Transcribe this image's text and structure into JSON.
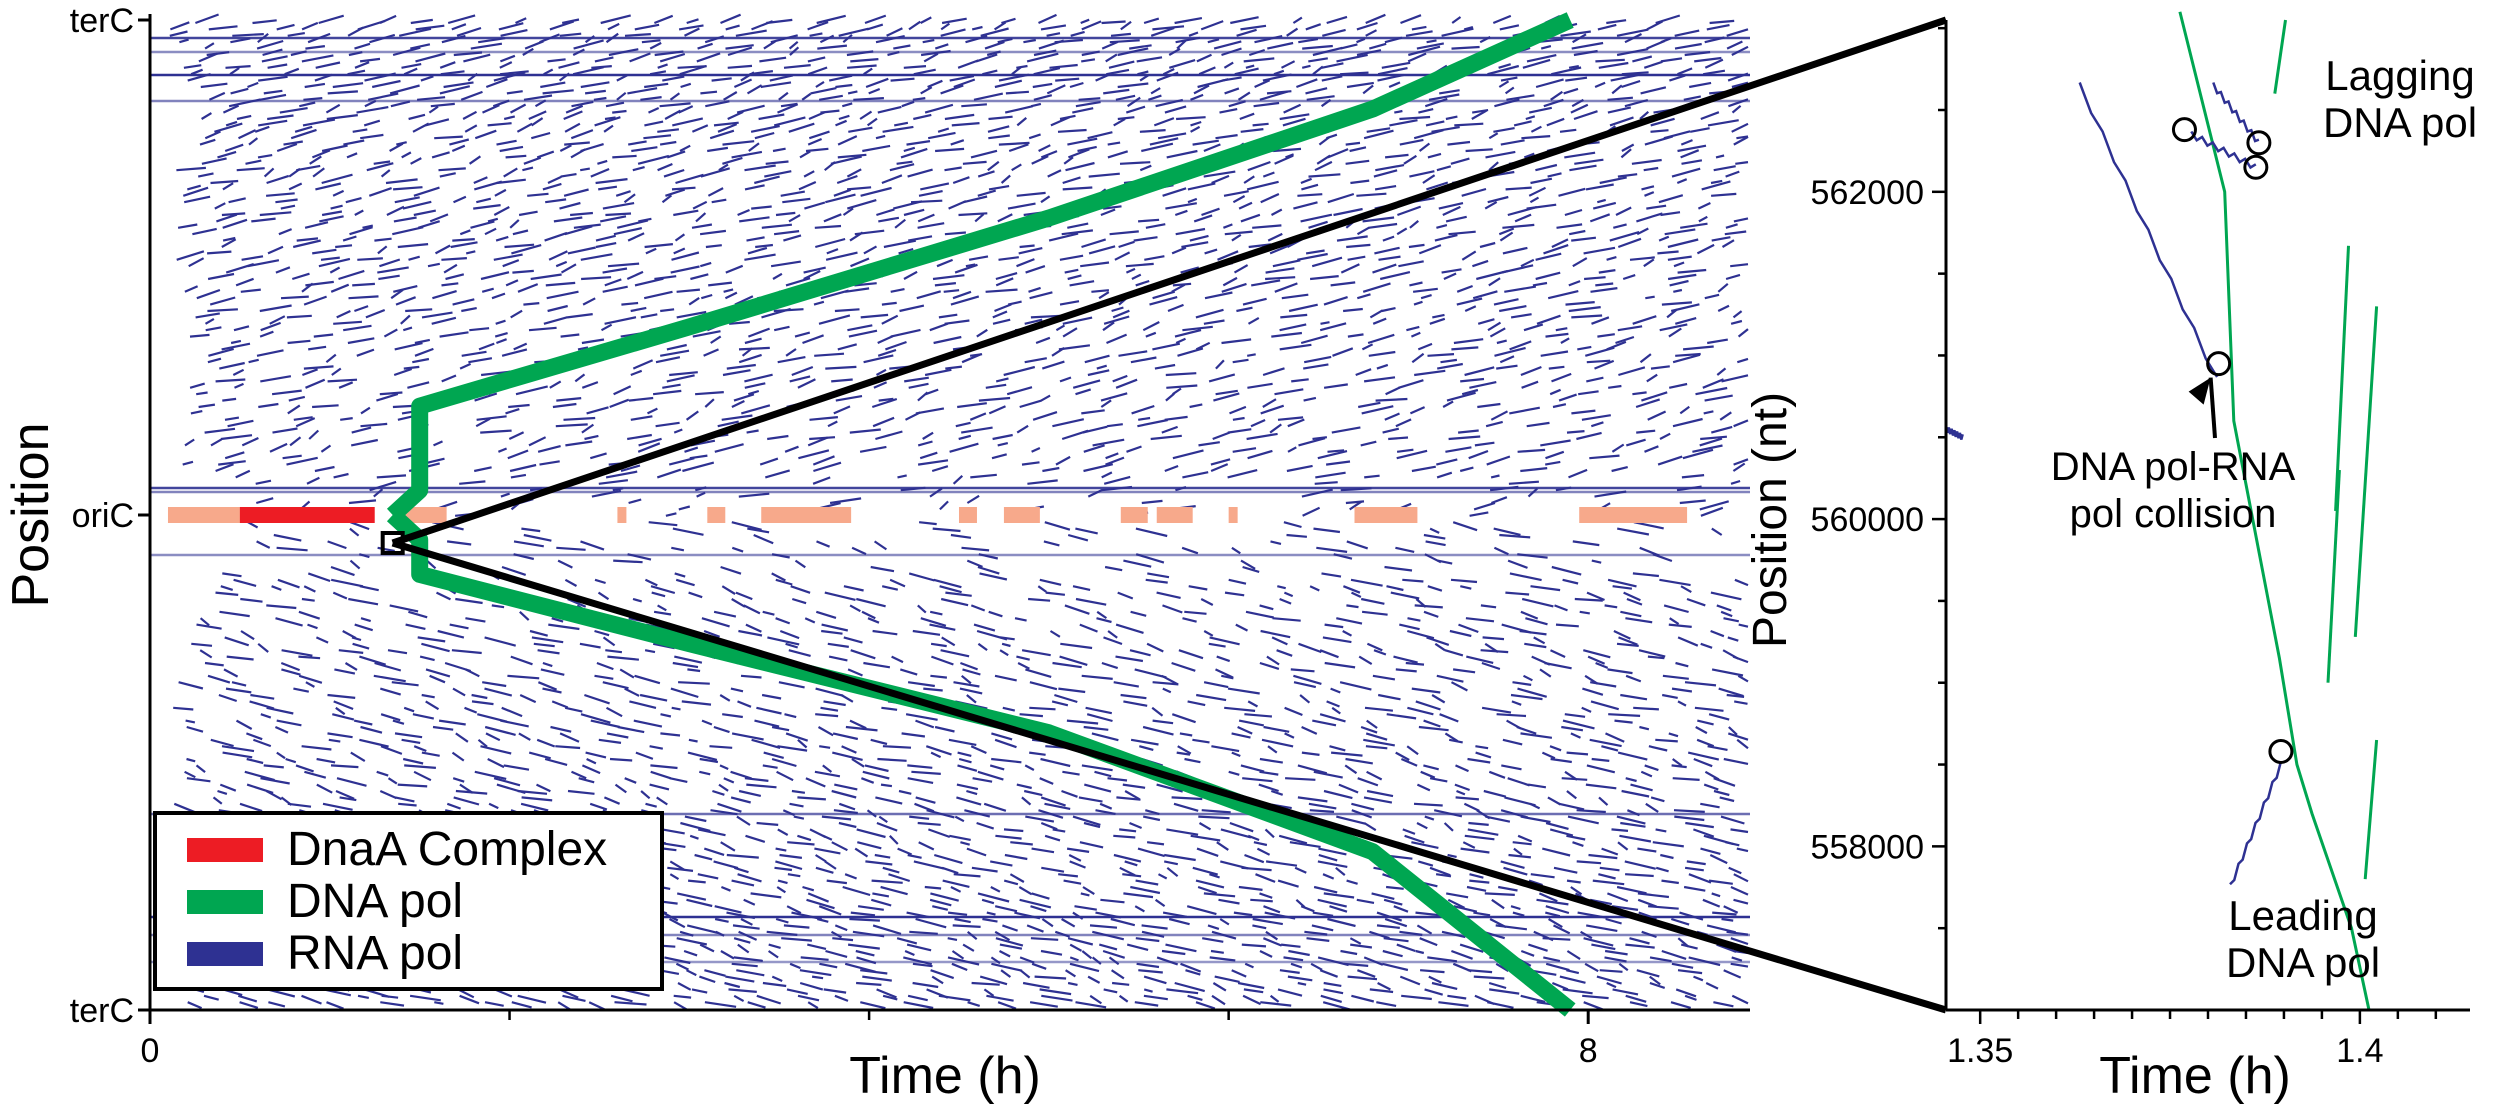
{
  "colors": {
    "dnaA": "#ed1c24",
    "dnaA_light": "#f7a98b",
    "dna_pol": "#00a651",
    "rna_pol": "#2e3192",
    "axis": "#000000"
  },
  "chart_data": [
    {
      "type": "scatter",
      "panel": "overview",
      "xlabel": "Time (h)",
      "ylabel": "Position",
      "x_ticks": [
        {
          "value": 0,
          "label": "0"
        },
        {
          "value": 8,
          "label": "8"
        }
      ],
      "x_minor_ticks": [
        2,
        4,
        6
      ],
      "xlim": [
        0,
        8.9
      ],
      "y_ticks": [
        {
          "value": 1,
          "label": "terC"
        },
        {
          "value": 0,
          "label": "oriC"
        },
        {
          "value": -1,
          "label": "terC"
        }
      ],
      "ylim": [
        -1,
        1
      ],
      "legend": {
        "placement": "bottom-left",
        "entries": [
          {
            "name": "DnaA Complex",
            "color_key": "dnaA"
          },
          {
            "name": "DNA pol",
            "color_key": "dna_pol"
          },
          {
            "name": "RNA pol",
            "color_key": "rna_pol"
          }
        ]
      },
      "series": [
        {
          "name": "DNA pol",
          "fork": "upper",
          "x": [
            1.35,
            1.5,
            1.5,
            3.0,
            5.0,
            6.8,
            7.9
          ],
          "y": [
            0,
            0.05,
            0.22,
            0.38,
            0.6,
            0.82,
            1.0
          ]
        },
        {
          "name": "DNA pol",
          "fork": "lower",
          "x": [
            1.35,
            1.5,
            1.5,
            3.0,
            5.0,
            6.8,
            7.9
          ],
          "y": [
            0,
            -0.05,
            -0.12,
            -0.26,
            -0.44,
            -0.68,
            -1.0
          ]
        }
      ],
      "dnaA_segments": [
        {
          "x0": 0.1,
          "x1": 1.2,
          "intensity": "low"
        },
        {
          "x0": 0.5,
          "x1": 1.25,
          "intensity": "high"
        },
        {
          "x0": 1.4,
          "x1": 1.65,
          "intensity": "low"
        },
        {
          "x0": 2.6,
          "x1": 2.65,
          "intensity": "low"
        },
        {
          "x0": 3.1,
          "x1": 3.2,
          "intensity": "low"
        },
        {
          "x0": 3.4,
          "x1": 3.9,
          "intensity": "low"
        },
        {
          "x0": 4.5,
          "x1": 4.6,
          "intensity": "low"
        },
        {
          "x0": 4.75,
          "x1": 4.95,
          "intensity": "low"
        },
        {
          "x0": 5.4,
          "x1": 5.55,
          "intensity": "low"
        },
        {
          "x0": 5.6,
          "x1": 5.8,
          "intensity": "low"
        },
        {
          "x0": 6.0,
          "x1": 6.05,
          "intensity": "low"
        },
        {
          "x0": 6.7,
          "x1": 7.05,
          "intensity": "low"
        },
        {
          "x0": 7.95,
          "x1": 8.55,
          "intensity": "low"
        }
      ]
    },
    {
      "type": "line",
      "panel": "zoom",
      "xlabel": "Time (h)",
      "ylabel": "Position (nt)",
      "x_ticks": [
        {
          "value": 1.35,
          "label": "1.35"
        },
        {
          "value": 1.4,
          "label": "1.4"
        }
      ],
      "xlim": [
        1.3455,
        1.4145
      ],
      "y_ticks": [
        {
          "value": 558000,
          "label": "558000"
        },
        {
          "value": 560000,
          "label": "560000"
        },
        {
          "value": 562000,
          "label": "562000"
        }
      ],
      "ylim": [
        557000,
        563050
      ],
      "annotations": [
        {
          "text_lines": [
            "Lagging",
            "DNA pol"
          ],
          "color_key": "dna_pol"
        },
        {
          "text_lines": [
            "Leading",
            "DNA pol"
          ],
          "color_key": "dna_pol"
        },
        {
          "text_lines": [
            "DNA pol-RNA",
            "pol collision"
          ],
          "color_key": "axis"
        }
      ],
      "series": [
        {
          "name": "Leading DNA pol",
          "x": [
            1.3763,
            1.3822,
            1.3834,
            1.3894,
            1.3917,
            1.3937,
            1.3989,
            1.4012
          ],
          "y": [
            563100,
            562000,
            560600,
            559150,
            558500,
            558200,
            557500,
            557000
          ]
        },
        {
          "name": "Lagging DNA pol",
          "x": [
            1.3968,
            1.3985
          ],
          "y": [
            560050,
            561670
          ]
        },
        {
          "name": "Lagging DNA pol",
          "x": [
            1.3958,
            1.3973
          ],
          "y": [
            559000,
            560300
          ]
        },
        {
          "name": "Lagging DNA pol",
          "x": [
            1.3994,
            1.4022
          ],
          "y": [
            559280,
            561300
          ]
        },
        {
          "name": "Lagging DNA pol",
          "x": [
            1.3888,
            1.3902
          ],
          "y": [
            562600,
            563050
          ]
        },
        {
          "name": "Lagging DNA pol",
          "x": [
            1.4007,
            1.4022
          ],
          "y": [
            557800,
            558650
          ]
        },
        {
          "name": "RNA pol",
          "x": [
            1.3455,
            1.3477
          ],
          "y": [
            560550,
            560500
          ]
        },
        {
          "name": "RNA pol",
          "x": [
            1.3631,
            1.3812
          ],
          "y": [
            562650,
            560850
          ]
        },
        {
          "name": "RNA pol",
          "x": [
            1.3778,
            1.3863
          ],
          "y": [
            562350,
            562150
          ]
        },
        {
          "name": "RNA pol",
          "x": [
            1.3807,
            1.3867
          ],
          "y": [
            562650,
            562300
          ]
        },
        {
          "name": "RNA pol",
          "x": [
            1.3829,
            1.3896
          ],
          "y": [
            557750,
            558500
          ]
        }
      ],
      "collisions": [
        {
          "x": 1.3769,
          "y": 562380
        },
        {
          "x": 1.3863,
          "y": 562150
        },
        {
          "x": 1.3867,
          "y": 562300
        },
        {
          "x": 1.3814,
          "y": 560950
        },
        {
          "x": 1.3896,
          "y": 558580
        }
      ]
    }
  ]
}
